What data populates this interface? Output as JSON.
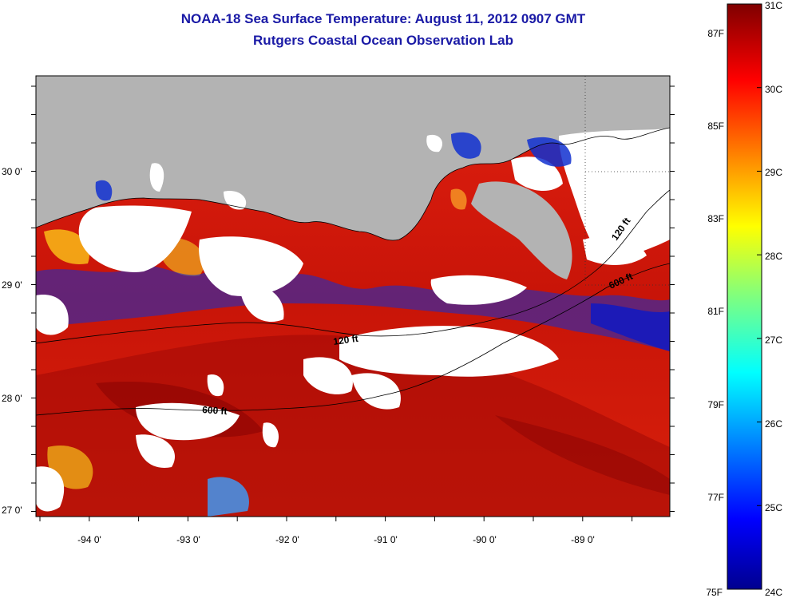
{
  "header": {
    "title": "NOAA-18 Sea Surface Temperature:  August 11, 2012 0907 GMT",
    "subtitle": "Rutgers Coastal Ocean Observation Lab"
  },
  "map": {
    "lon_labels": [
      "-94 0'",
      "-93 0'",
      "-92 0'",
      "-91 0'",
      "-90 0'",
      "-89 0'"
    ],
    "lat_labels": [
      "30 0'",
      "29 0'",
      "28 0'",
      "27 0'"
    ],
    "lon_range": [
      -94.6,
      -88.3
    ],
    "lat_range": [
      26.95,
      30.85
    ],
    "contours": [
      {
        "label": "120 ft"
      },
      {
        "label": "600 ft"
      },
      {
        "label": "120 ft"
      },
      {
        "label": "600 ft"
      }
    ],
    "colors": {
      "land": "#b3b3b3",
      "cloud": "#ffffff",
      "frame": "#000000"
    }
  },
  "colorbar": {
    "celsius_labels": [
      "31C",
      "30C",
      "29C",
      "28C",
      "27C",
      "26C",
      "25C",
      "24C"
    ],
    "fahrenheit_labels": [
      "87F",
      "85F",
      "83F",
      "81F",
      "79F",
      "77F",
      "75F"
    ],
    "range_c": [
      24,
      31
    ],
    "colormap": "jet"
  }
}
